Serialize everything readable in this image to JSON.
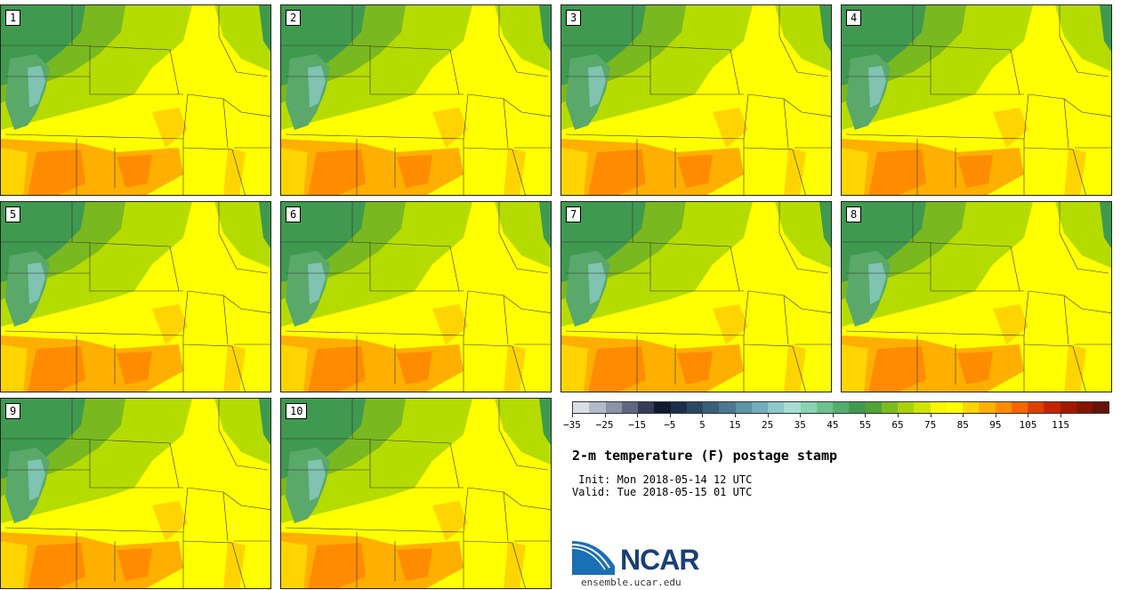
{
  "panels": [
    "1",
    "2",
    "3",
    "4",
    "5",
    "6",
    "7",
    "8",
    "9",
    "10"
  ],
  "colorbar": {
    "colors": [
      "#d8dde6",
      "#b3b9c7",
      "#8b93a8",
      "#5e6781",
      "#343d58",
      "#101a30",
      "#1c2f4a",
      "#2a4864",
      "#3a5f7a",
      "#4b7890",
      "#5f93a6",
      "#74adbb",
      "#8ec6cb",
      "#a7ddd6",
      "#86d4b0",
      "#6cc28e",
      "#52ae6e",
      "#3f9a4f",
      "#4ea437",
      "#7dbc20",
      "#a8d10e",
      "#d0e400",
      "#f7f700",
      "#ffff00",
      "#ffd400",
      "#ffaf00",
      "#ff8c00",
      "#f56600",
      "#e04000",
      "#c42400",
      "#a41800",
      "#851400",
      "#661208"
    ],
    "tick_labels": [
      "−35",
      "−25",
      "−15",
      "−5",
      "5",
      "15",
      "25",
      "35",
      "45",
      "55",
      "65",
      "75",
      "85",
      "95",
      "105",
      "115"
    ]
  },
  "title": "2-m temperature (F) postage stamp",
  "init": " Init: Mon 2018-05-14 12 UTC",
  "valid": "Valid: Tue 2018-05-15 01 UTC",
  "logo_text": "NCAR",
  "website": "ensemble.ucar.edu"
}
